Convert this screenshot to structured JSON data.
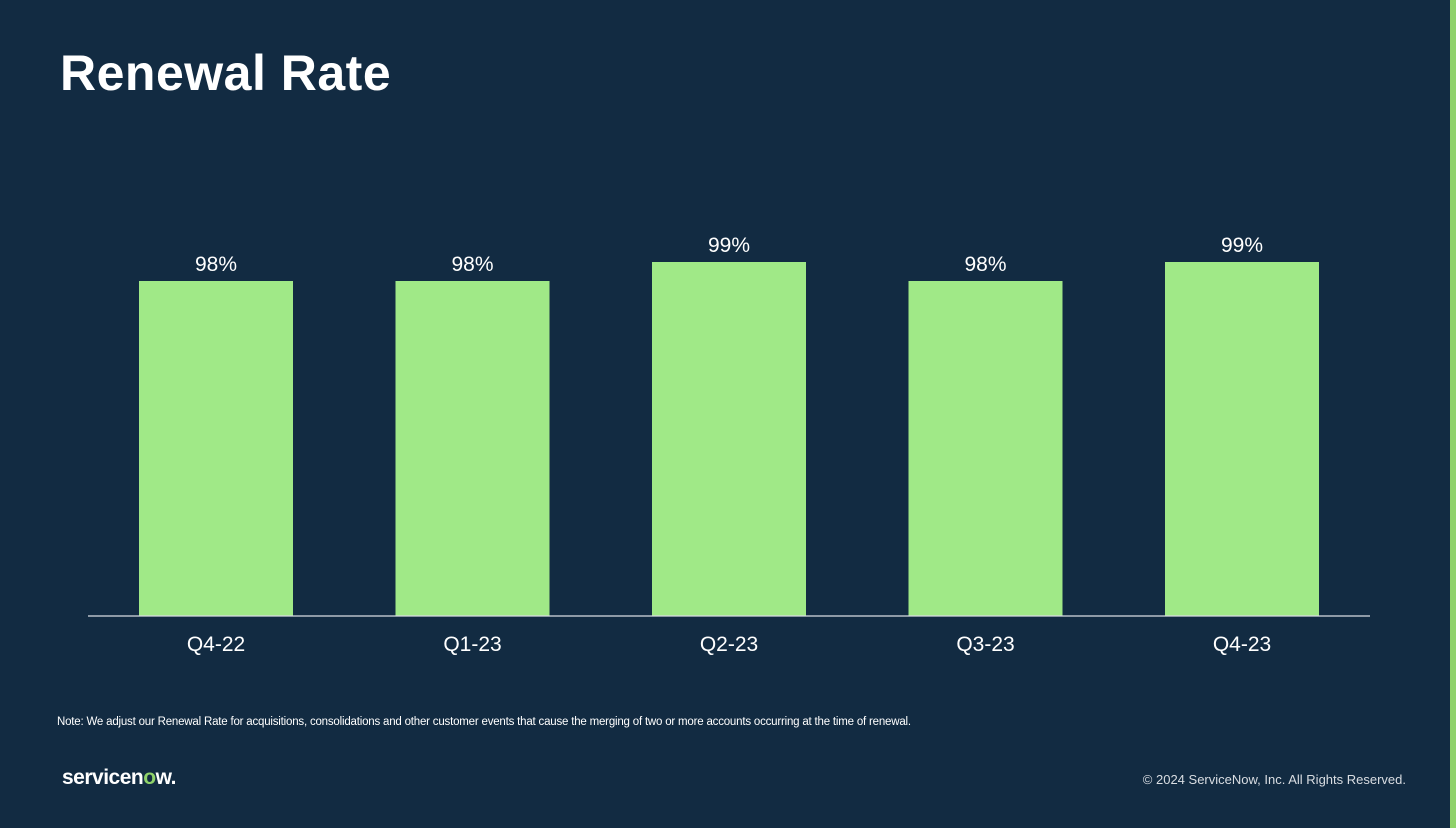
{
  "slide": {
    "title": "Renewal Rate",
    "note": "Note: We adjust our Renewal Rate for acquisitions, consolidations and other customer events that cause the merging of two or more accounts occurring at the time of renewal.",
    "logo": "servicenow.",
    "copyright": "© 2024 ServiceNow, Inc. All Rights Reserved."
  },
  "colors": {
    "background": "#122b42",
    "bar": "#a0e987",
    "accent": "#8fd26a",
    "text": "#ffffff"
  },
  "chart_data": {
    "type": "bar",
    "title": "Renewal Rate",
    "categories": [
      "Q4-22",
      "Q1-23",
      "Q2-23",
      "Q3-23",
      "Q4-23"
    ],
    "values": [
      98,
      98,
      99,
      98,
      99
    ],
    "data_labels": [
      "98%",
      "98%",
      "99%",
      "98%",
      "99%"
    ],
    "unit": "%",
    "grid": false,
    "legend": "none"
  }
}
